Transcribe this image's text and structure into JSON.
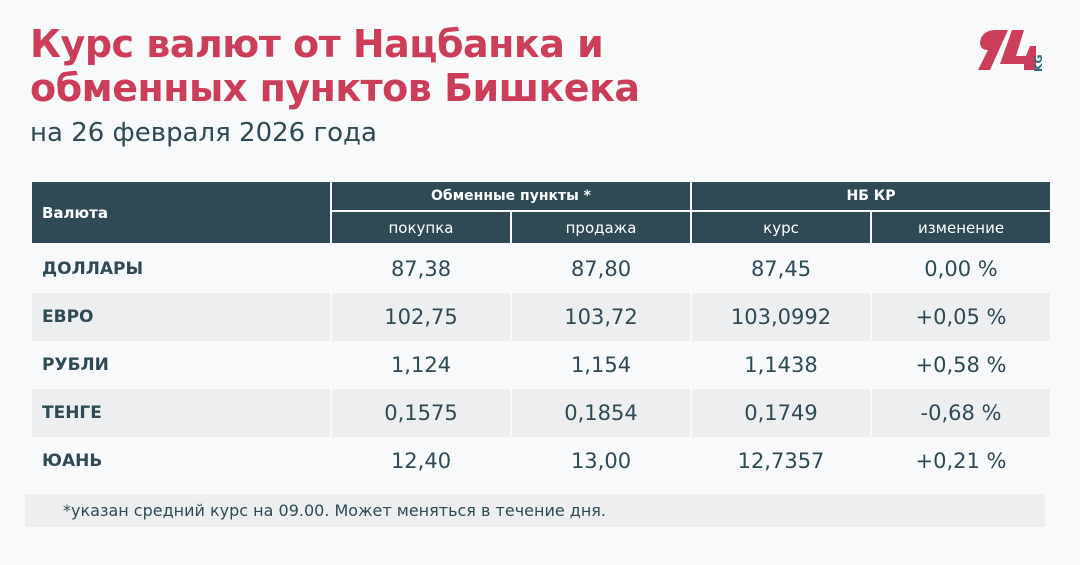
{
  "title_line1": "Курс валют от Нацбанка и",
  "title_line2": "обменных пунктов Бишкека",
  "subtitle": "на 26 февраля 2026 года",
  "logo": {
    "text": "24",
    "suffix": "KG",
    "color": "#cc3d5a",
    "suffix_color": "#2f6b7a"
  },
  "table": {
    "col_currency": "Валюта",
    "group_exchange": "Обменные пункты *",
    "group_nb": "НБ КР",
    "sub_buy": "покупка",
    "sub_sell": "продажа",
    "sub_rate": "курс",
    "sub_change": "изменение",
    "rows": [
      {
        "name": "ДОЛЛАРЫ",
        "buy": "87,38",
        "sell": "87,80",
        "rate": "87,45",
        "change": "0,00 %"
      },
      {
        "name": "ЕВРО",
        "buy": "102,75",
        "sell": "103,72",
        "rate": "103,0992",
        "change": "+0,05 %"
      },
      {
        "name": "РУБЛИ",
        "buy": "1,124",
        "sell": "1,154",
        "rate": "1,1438",
        "change": "+0,58 %"
      },
      {
        "name": "ТЕНГЕ",
        "buy": "0,1575",
        "sell": "0,1854",
        "rate": "0,1749",
        "change": "-0,68 %"
      },
      {
        "name": "ЮАНЬ",
        "buy": "12,40",
        "sell": "13,00",
        "rate": "12,7357",
        "change": "+0,21 %"
      }
    ]
  },
  "footnote": "*указан средний курс на 09.00. Может меняться в течение дня.",
  "colors": {
    "accent": "#cc3d5a",
    "header": "#2f4a55"
  }
}
